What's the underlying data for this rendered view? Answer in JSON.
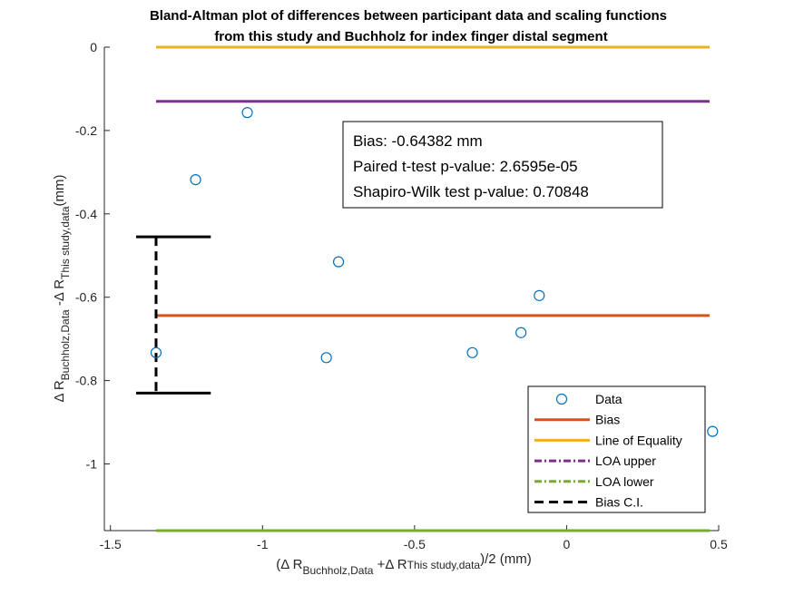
{
  "chart_data": {
    "type": "scatter",
    "title_line1": "Bland-Altman plot of differences between participant data and scaling functions",
    "title_line2": "from this study and Buchholz for index finger distal segment",
    "xlabel": {
      "open": "(",
      "t1": "Δ R",
      "s1": "Buchholz,Data",
      "t2": " +Δ R",
      "s2": "This study,data",
      "t3": ")/2 (mm)"
    },
    "ylabel": {
      "t1": "Δ R",
      "s1": "Buchholz,Data",
      "t2": " -Δ R",
      "s2": "This study,data",
      "t3": "(mm)"
    },
    "xlim": [
      -1.52,
      0.5
    ],
    "ylim": [
      -1.16,
      0
    ],
    "xticks": [
      {
        "v": -1.5,
        "label": "-1.5"
      },
      {
        "v": -1.0,
        "label": "-1"
      },
      {
        "v": -0.5,
        "label": "-0.5"
      },
      {
        "v": 0.0,
        "label": "0"
      },
      {
        "v": 0.5,
        "label": "0.5"
      }
    ],
    "yticks": [
      {
        "v": 0,
        "label": "0"
      },
      {
        "v": -0.2,
        "label": "-0.2"
      },
      {
        "v": -0.4,
        "label": "-0.4"
      },
      {
        "v": -0.6,
        "label": "-0.6"
      },
      {
        "v": -0.8,
        "label": "-0.8"
      },
      {
        "v": -1.0,
        "label": "-1"
      }
    ],
    "points": [
      {
        "x": -1.35,
        "y": -0.733
      },
      {
        "x": -1.22,
        "y": -0.318
      },
      {
        "x": -1.05,
        "y": -0.157
      },
      {
        "x": -0.79,
        "y": -0.745
      },
      {
        "x": -0.75,
        "y": -0.515
      },
      {
        "x": -0.31,
        "y": -0.733
      },
      {
        "x": -0.15,
        "y": -0.685
      },
      {
        "x": -0.09,
        "y": -0.596
      },
      {
        "x": 0.48,
        "y": -0.922
      }
    ],
    "lines": {
      "x_range": [
        -1.35,
        0.47
      ],
      "bias": -0.64382,
      "equality": 0,
      "loa_upper": -0.13,
      "loa_lower": -1.16
    },
    "bias_ci": {
      "x": -1.35,
      "x_range": [
        -1.35,
        -1.17
      ],
      "upper": -0.455,
      "lower": -0.83
    },
    "colors": {
      "data": "#0072BD",
      "bias": "#D95319",
      "equality": "#EDB120",
      "loa_upper": "#7E2F8E",
      "loa_lower": "#77AC30",
      "bias_ci": "#000000"
    },
    "annotation": [
      "Bias: -0.64382 mm",
      "Paired t-test p-value: 2.6595e-05",
      "Shapiro-Wilk test p-value: 0.70848"
    ],
    "legend": {
      "placement": "bottom-right",
      "items": [
        {
          "key": "data",
          "label": "Data",
          "style": "marker"
        },
        {
          "key": "bias",
          "label": "Bias",
          "style": "solid"
        },
        {
          "key": "equality",
          "label": "Line of Equality",
          "style": "solid"
        },
        {
          "key": "loa_upper",
          "label": "LOA upper",
          "style": "dashdot"
        },
        {
          "key": "loa_lower",
          "label": "LOA lower",
          "style": "dashdot"
        },
        {
          "key": "bias_ci",
          "label": "Bias C.I.",
          "style": "dashed"
        }
      ]
    }
  }
}
